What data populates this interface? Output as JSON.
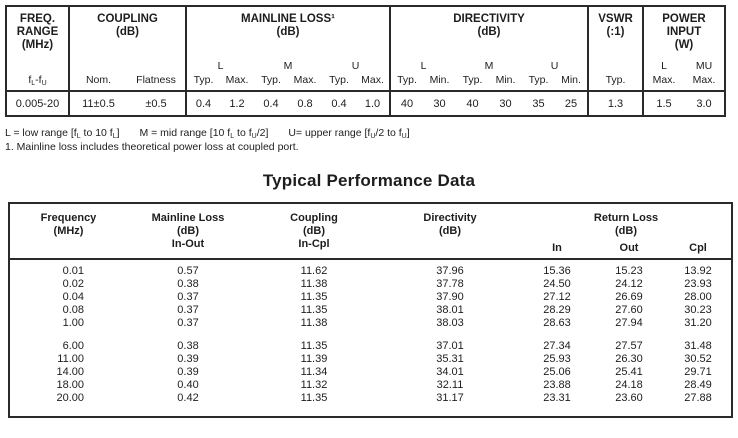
{
  "colors": {
    "text": "#1d1d1d",
    "line": "#2a2a2a",
    "background": "#ffffff"
  },
  "spec": {
    "freq": {
      "title": [
        "FREQ.",
        "RANGE",
        "(MHz)"
      ],
      "sub_label": "f~L~-f~U~",
      "value": "0.005-20"
    },
    "coupling": {
      "title": [
        "COUPLING",
        "(dB)"
      ],
      "nom_label": "Nom.",
      "flatness_label": "Flatness",
      "nom": "11±0.5",
      "flatness": "±0.5"
    },
    "mainline": {
      "title": [
        "MAINLINE LOSS¹",
        "(dB)"
      ],
      "bands": [
        "L",
        "M",
        "U"
      ],
      "cols": [
        "Typ.",
        "Max.",
        "Typ.",
        "Max.",
        "Typ.",
        "Max."
      ],
      "values": [
        "0.4",
        "1.2",
        "0.4",
        "0.8",
        "0.4",
        "1.0"
      ]
    },
    "directivity": {
      "title": [
        "DIRECTIVITY",
        "(dB)"
      ],
      "bands": [
        "L",
        "M",
        "U"
      ],
      "cols": [
        "Typ.",
        "Min.",
        "Typ.",
        "Min.",
        "Typ.",
        "Min."
      ],
      "values": [
        "40",
        "30",
        "40",
        "30",
        "35",
        "25"
      ]
    },
    "vswr": {
      "title": [
        "VSWR",
        "(:1)"
      ],
      "col": "Typ.",
      "value": "1.3"
    },
    "power": {
      "title": [
        "POWER",
        "INPUT",
        "(W)"
      ],
      "bands": [
        "L",
        "MU"
      ],
      "cols": [
        "Max.",
        "Max."
      ],
      "values": [
        "1.5",
        "3.0"
      ]
    }
  },
  "footnotes": {
    "line1": [
      "L = low range [f~L~ to 10 f~L~]",
      "M = mid range [10 f~L~ to f~U~/2]",
      "U= upper range [f~U~/2 to f~U~]"
    ],
    "line2": "1. Mainline loss includes theoretical power loss at coupled port."
  },
  "perf": {
    "title": "Typical Performance Data",
    "headers": {
      "frequency": [
        "Frequency",
        "(MHz)"
      ],
      "mainline": [
        "Mainline Loss",
        "(dB)",
        "In-Out"
      ],
      "coupling": [
        "Coupling",
        "(dB)",
        "In-Cpl"
      ],
      "directivity": [
        "Directivity",
        "(dB)"
      ],
      "return_loss": [
        "Return Loss",
        "(dB)"
      ],
      "in": "In",
      "out": "Out",
      "cpl": "Cpl"
    },
    "row_groups": [
      [
        {
          "freq": "0.01",
          "ml": "0.57",
          "cpl": "11.62",
          "dir": "37.96",
          "rl_in": "15.36",
          "rl_out": "15.23",
          "rl_cpl": "13.92"
        },
        {
          "freq": "0.02",
          "ml": "0.38",
          "cpl": "11.38",
          "dir": "37.78",
          "rl_in": "24.50",
          "rl_out": "24.12",
          "rl_cpl": "23.93"
        },
        {
          "freq": "0.04",
          "ml": "0.37",
          "cpl": "11.35",
          "dir": "37.90",
          "rl_in": "27.12",
          "rl_out": "26.69",
          "rl_cpl": "28.00"
        },
        {
          "freq": "0.08",
          "ml": "0.37",
          "cpl": "11.35",
          "dir": "38.01",
          "rl_in": "28.29",
          "rl_out": "27.60",
          "rl_cpl": "30.23"
        },
        {
          "freq": "1.00",
          "ml": "0.37",
          "cpl": "11.38",
          "dir": "38.03",
          "rl_in": "28.63",
          "rl_out": "27.94",
          "rl_cpl": "31.20"
        }
      ],
      [
        {
          "freq": "6.00",
          "ml": "0.38",
          "cpl": "11.35",
          "dir": "37.01",
          "rl_in": "27.34",
          "rl_out": "27.57",
          "rl_cpl": "31.48"
        },
        {
          "freq": "11.00",
          "ml": "0.39",
          "cpl": "11.39",
          "dir": "35.31",
          "rl_in": "25.93",
          "rl_out": "26.30",
          "rl_cpl": "30.52"
        },
        {
          "freq": "14.00",
          "ml": "0.39",
          "cpl": "11.34",
          "dir": "34.01",
          "rl_in": "25.06",
          "rl_out": "25.41",
          "rl_cpl": "29.71"
        },
        {
          "freq": "18.00",
          "ml": "0.40",
          "cpl": "11.32",
          "dir": "32.11",
          "rl_in": "23.88",
          "rl_out": "24.18",
          "rl_cpl": "28.49"
        },
        {
          "freq": "20.00",
          "ml": "0.42",
          "cpl": "11.35",
          "dir": "31.17",
          "rl_in": "23.31",
          "rl_out": "23.60",
          "rl_cpl": "27.88"
        }
      ]
    ]
  }
}
